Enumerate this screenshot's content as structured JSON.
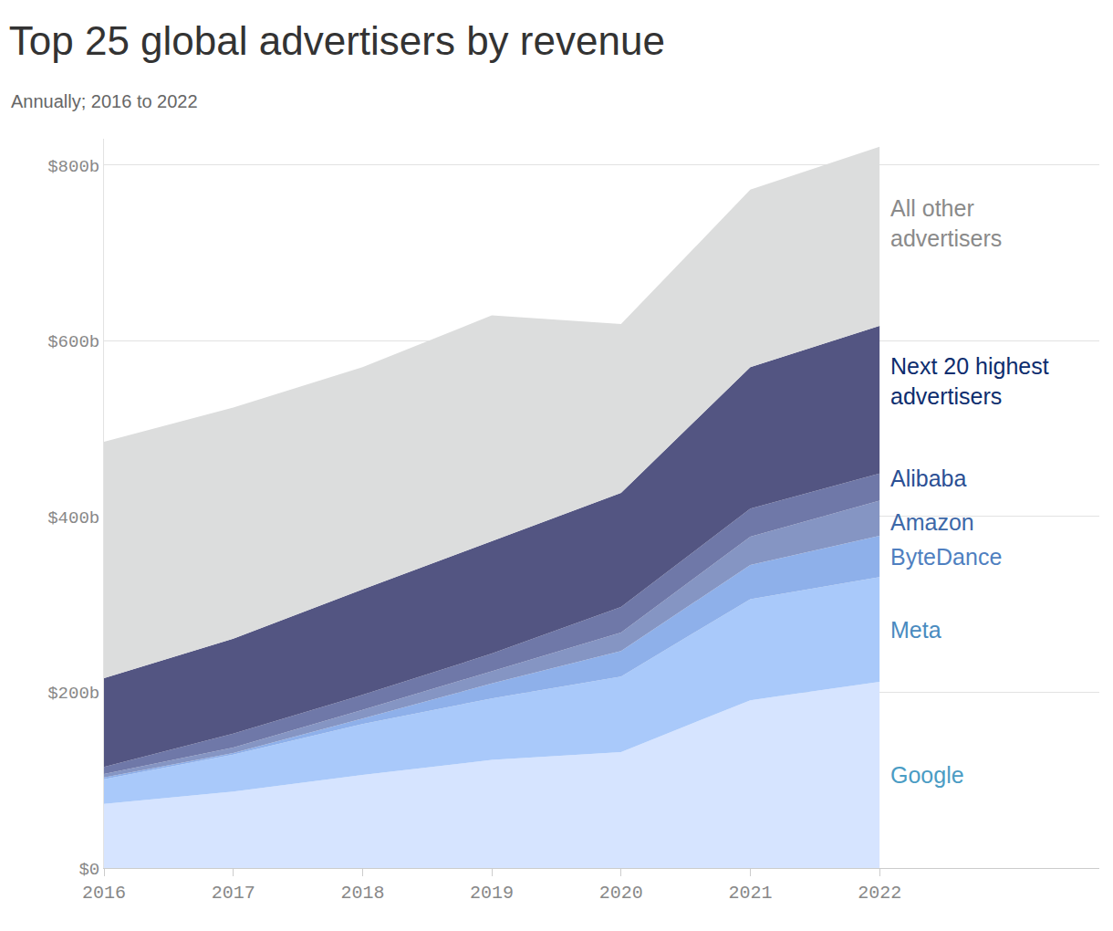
{
  "chart_data": {
    "type": "area",
    "title": "Top 25 global advertisers by revenue",
    "subtitle": "Annually; 2016 to 2022",
    "stacked": true,
    "grid": true,
    "x": [
      2016,
      2017,
      2018,
      2019,
      2020,
      2021,
      2022
    ],
    "xlim": [
      2016,
      2023.7
    ],
    "xticks": [
      2016,
      2017,
      2018,
      2019,
      2020,
      2021,
      2022
    ],
    "ylim": [
      0,
      830
    ],
    "yticks": [
      {
        "value": 0,
        "label": "$0"
      },
      {
        "value": 200,
        "label": "$200b"
      },
      {
        "value": 400,
        "label": "$400b"
      },
      {
        "value": 600,
        "label": "$600b"
      },
      {
        "value": 800,
        "label": "$800b"
      }
    ],
    "series": [
      {
        "name": "Google",
        "color": "#d6e4ff",
        "values": [
          73,
          87,
          106,
          123,
          132,
          191,
          212
        ]
      },
      {
        "name": "Meta",
        "color": "#a9c9fa",
        "values": [
          28,
          42,
          58,
          70,
          86,
          115,
          119
        ]
      },
      {
        "name": "ByteDance",
        "color": "#8eb0ea",
        "values": [
          2,
          2,
          6,
          17,
          29,
          39,
          47
        ]
      },
      {
        "name": "Amazon",
        "color": "#8595c3",
        "values": [
          4,
          6,
          10,
          14,
          21,
          32,
          40
        ]
      },
      {
        "name": "Alibaba",
        "color": "#6f78a8",
        "values": [
          8,
          16,
          17,
          20,
          29,
          32,
          31
        ]
      },
      {
        "name": "Next 20 highest advertisers",
        "color": "#535582",
        "values": [
          101,
          108,
          120,
          128,
          130,
          161,
          168
        ]
      },
      {
        "name": "All other advertisers",
        "color": "#dcdddd",
        "values": [
          269,
          263,
          253,
          257,
          192,
          202,
          204
        ]
      }
    ]
  }
}
